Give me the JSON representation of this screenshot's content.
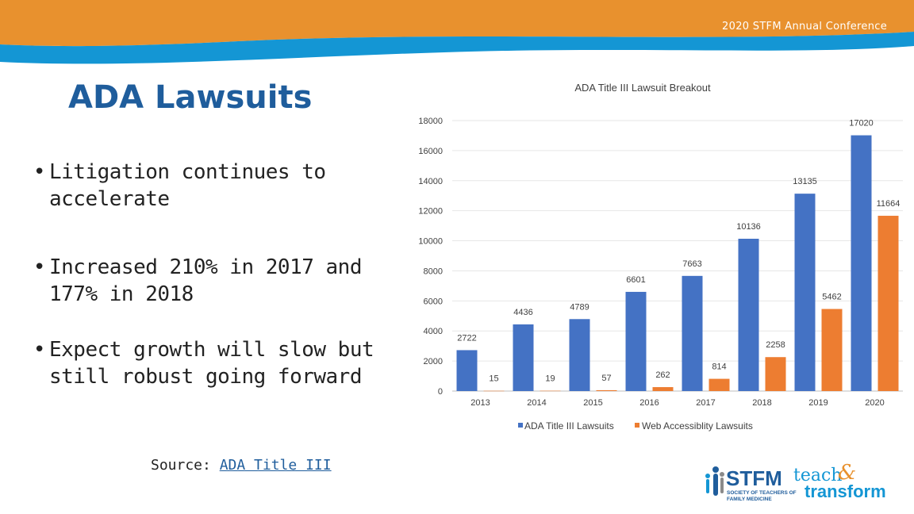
{
  "header": {
    "conference": "2020 STFM Annual Conference"
  },
  "slide": {
    "title": "ADA Lawsuits",
    "bullets": [
      "Litigation continues to accelerate",
      "Increased 210% in 2017 and 177% in 2018",
      "Expect growth will slow but still robust going forward"
    ],
    "source_label": "Source: ",
    "source_link": "ADA Title III"
  },
  "logo": {
    "name": "STFM",
    "tagline1": "SOCIETY OF TEACHERS OF",
    "tagline2": "FAMILY MEDICINE",
    "teach": "teach",
    "ampersand": "&",
    "transform": "transform"
  },
  "colors": {
    "banner_orange": "#e8912e",
    "banner_blue": "#1496d4",
    "series_blue": "#4472c4",
    "series_orange": "#ed7d31",
    "title_blue": "#1f5d9c"
  },
  "chart_data": {
    "type": "bar",
    "title": "ADA Title III Lawsuit Breakout",
    "categories": [
      "2013",
      "2014",
      "2015",
      "2016",
      "2017",
      "2018",
      "2019",
      "2020"
    ],
    "series": [
      {
        "name": "ADA Title III Lawsuits",
        "values": [
          2722,
          4436,
          4789,
          6601,
          7663,
          10136,
          13135,
          17020
        ]
      },
      {
        "name": "Web Accessiblity Lawsuits",
        "values": [
          15,
          19,
          57,
          262,
          814,
          2258,
          5462,
          11664
        ]
      }
    ],
    "yticks": [
      0,
      2000,
      4000,
      6000,
      8000,
      10000,
      12000,
      14000,
      16000,
      18000
    ],
    "ylim": [
      0,
      18000
    ],
    "grid": true,
    "legend": "bottom"
  }
}
